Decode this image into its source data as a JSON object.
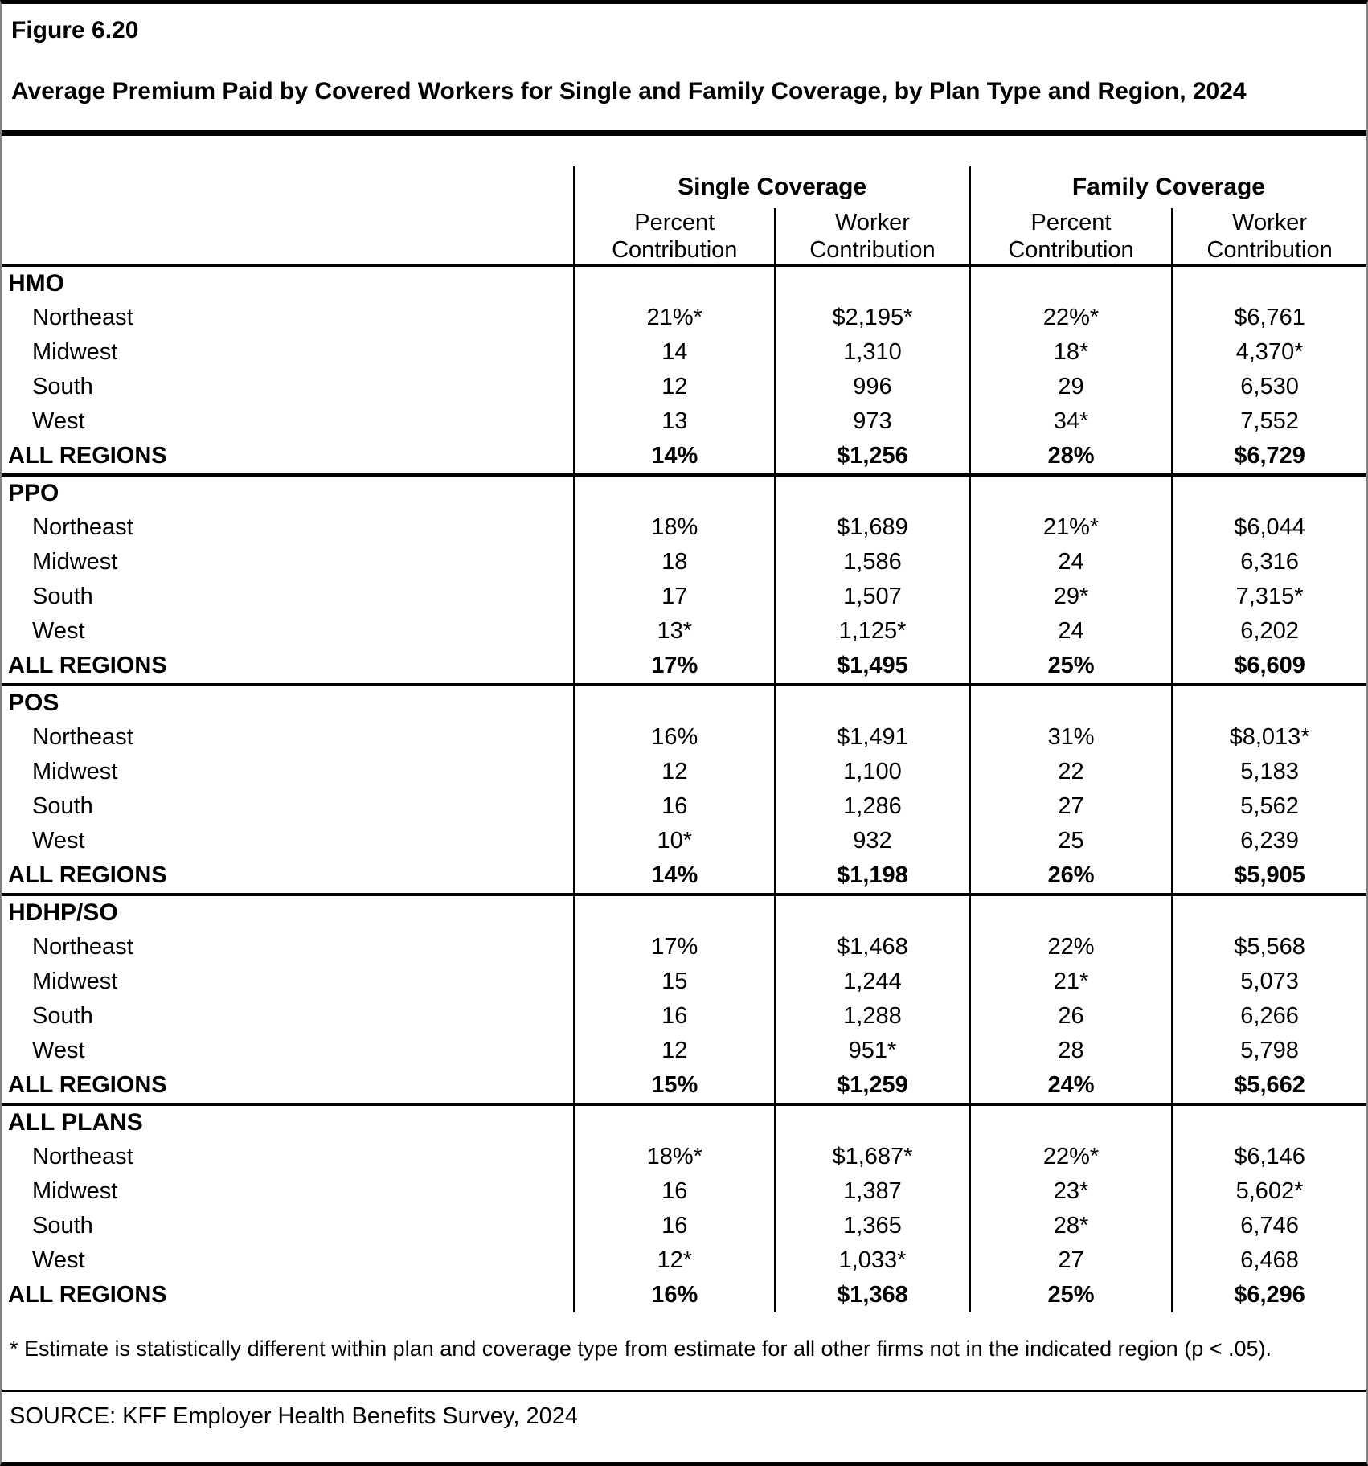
{
  "figure": {
    "label": "Figure 6.20",
    "title": "Average Premium Paid by Covered Workers for Single and Family Coverage, by Plan Type and Region, 2024"
  },
  "table": {
    "group_headers": [
      "Single Coverage",
      "Family Coverage"
    ],
    "sub_headers": [
      {
        "line1": "Percent",
        "line2": "Contribution"
      },
      {
        "line1": "Worker",
        "line2": "Contribution"
      },
      {
        "line1": "Percent",
        "line2": "Contribution"
      },
      {
        "line1": "Worker",
        "line2": "Contribution"
      }
    ],
    "sections": [
      {
        "plan": "HMO",
        "rows": [
          {
            "region": "Northeast",
            "values": [
              "21%*",
              "$2,195*",
              "22%*",
              "$6,761"
            ]
          },
          {
            "region": "Midwest",
            "values": [
              "14",
              "1,310",
              "18*",
              "4,370*"
            ]
          },
          {
            "region": "South",
            "values": [
              "12",
              "996",
              "29",
              "6,530"
            ]
          },
          {
            "region": "West",
            "values": [
              "13",
              "973",
              "34*",
              "7,552"
            ]
          }
        ],
        "total": {
          "label": "ALL REGIONS",
          "values": [
            "14%",
            "$1,256",
            "28%",
            "$6,729"
          ]
        }
      },
      {
        "plan": "PPO",
        "rows": [
          {
            "region": "Northeast",
            "values": [
              "18%",
              "$1,689",
              "21%*",
              "$6,044"
            ]
          },
          {
            "region": "Midwest",
            "values": [
              "18",
              "1,586",
              "24",
              "6,316"
            ]
          },
          {
            "region": "South",
            "values": [
              "17",
              "1,507",
              "29*",
              "7,315*"
            ]
          },
          {
            "region": "West",
            "values": [
              "13*",
              "1,125*",
              "24",
              "6,202"
            ]
          }
        ],
        "total": {
          "label": "ALL REGIONS",
          "values": [
            "17%",
            "$1,495",
            "25%",
            "$6,609"
          ]
        }
      },
      {
        "plan": "POS",
        "rows": [
          {
            "region": "Northeast",
            "values": [
              "16%",
              "$1,491",
              "31%",
              "$8,013*"
            ]
          },
          {
            "region": "Midwest",
            "values": [
              "12",
              "1,100",
              "22",
              "5,183"
            ]
          },
          {
            "region": "South",
            "values": [
              "16",
              "1,286",
              "27",
              "5,562"
            ]
          },
          {
            "region": "West",
            "values": [
              "10*",
              "932",
              "25",
              "6,239"
            ]
          }
        ],
        "total": {
          "label": "ALL REGIONS",
          "values": [
            "14%",
            "$1,198",
            "26%",
            "$5,905"
          ]
        }
      },
      {
        "plan": "HDHP/SO",
        "rows": [
          {
            "region": "Northeast",
            "values": [
              "17%",
              "$1,468",
              "22%",
              "$5,568"
            ]
          },
          {
            "region": "Midwest",
            "values": [
              "15",
              "1,244",
              "21*",
              "5,073"
            ]
          },
          {
            "region": "South",
            "values": [
              "16",
              "1,288",
              "26",
              "6,266"
            ]
          },
          {
            "region": "West",
            "values": [
              "12",
              "951*",
              "28",
              "5,798"
            ]
          }
        ],
        "total": {
          "label": "ALL REGIONS",
          "values": [
            "15%",
            "$1,259",
            "24%",
            "$5,662"
          ]
        }
      },
      {
        "plan": "ALL PLANS",
        "rows": [
          {
            "region": "Northeast",
            "values": [
              "18%*",
              "$1,687*",
              "22%*",
              "$6,146"
            ]
          },
          {
            "region": "Midwest",
            "values": [
              "16",
              "1,387",
              "23*",
              "5,602*"
            ]
          },
          {
            "region": "South",
            "values": [
              "16",
              "1,365",
              "28*",
              "6,746"
            ]
          },
          {
            "region": "West",
            "values": [
              "12*",
              "1,033*",
              "27",
              "6,468"
            ]
          }
        ],
        "total": {
          "label": "ALL REGIONS",
          "values": [
            "16%",
            "$1,368",
            "25%",
            "$6,296"
          ]
        }
      }
    ]
  },
  "footnote": "* Estimate is statistically different within plan and coverage type from estimate for all other firms not in the indicated region (p < .05).",
  "source": "SOURCE: KFF Employer Health Benefits Survey, 2024"
}
